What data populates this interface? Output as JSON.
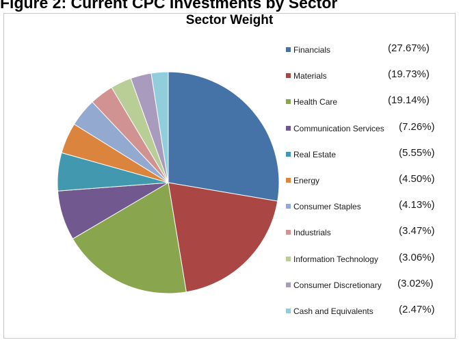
{
  "figure_title": "Figure 2: Current CPC Investments by Sector",
  "chart_data": {
    "type": "pie",
    "title": "Sector Weight",
    "slices": [
      {
        "name": "Financials",
        "value": 27.67,
        "label": "(27.67%)",
        "color": "#4572a7"
      },
      {
        "name": "Materials",
        "value": 19.73,
        "label": "(19.73%)",
        "color": "#aa4643"
      },
      {
        "name": "Health Care",
        "value": 19.14,
        "label": "(19.14%)",
        "color": "#89a54e"
      },
      {
        "name": "Communication Services",
        "value": 7.26,
        "label": "(7.26%)",
        "color": "#71588f"
      },
      {
        "name": "Real Estate",
        "value": 5.55,
        "label": "(5.55%)",
        "color": "#4198af"
      },
      {
        "name": "Energy",
        "value": 4.5,
        "label": "(4.50%)",
        "color": "#db843d"
      },
      {
        "name": "Consumer Staples",
        "value": 4.13,
        "label": "(4.13%)",
        "color": "#93a9cf"
      },
      {
        "name": "Industrials",
        "value": 3.47,
        "label": "(3.47%)",
        "color": "#d19392"
      },
      {
        "name": "Information Technology",
        "value": 3.06,
        "label": "(3.06%)",
        "color": "#b9cd96"
      },
      {
        "name": "Consumer Discretionary",
        "value": 3.02,
        "label": "(3.02%)",
        "color": "#a99bbd"
      },
      {
        "name": "Cash and Equivalents",
        "value": 2.47,
        "label": "(2.47%)",
        "color": "#92cddc"
      }
    ],
    "legend_position": "right"
  }
}
